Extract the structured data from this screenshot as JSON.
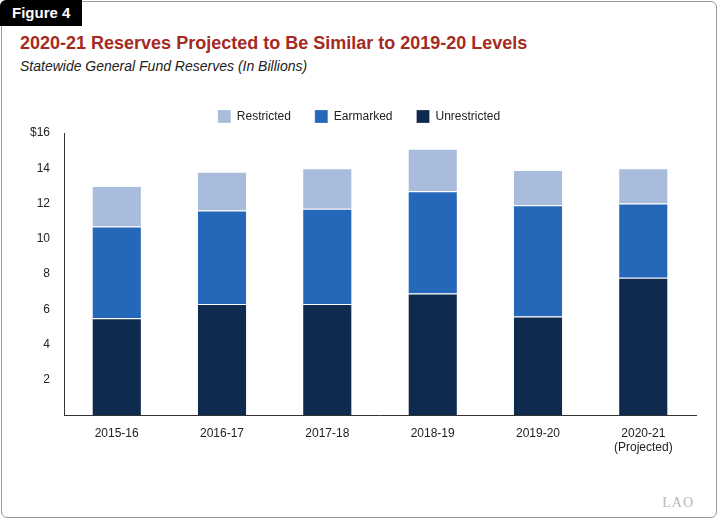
{
  "chart_data": {
    "type": "bar",
    "figure_label": "Figure 4",
    "title": "2020-21 Reserves Projected to Be Similar to 2019-20 Levels",
    "subtitle": "Statewide General Fund Reserves (In Billions)",
    "annotation": "LAO",
    "categories": [
      "2015-16",
      "2016-17",
      "2017-18",
      "2018-19",
      "2019-20",
      "2020-21 (Projected)"
    ],
    "series": [
      {
        "name": "Unrestricted",
        "color": "#0f2a4f",
        "values": [
          5.5,
          6.3,
          6.3,
          6.9,
          5.6,
          7.8
        ]
      },
      {
        "name": "Earmarked",
        "color": "#2567b8",
        "values": [
          5.2,
          5.3,
          5.4,
          5.8,
          6.3,
          4.2
        ]
      },
      {
        "name": "Restricted",
        "color": "#a9bcdc",
        "values": [
          2.3,
          2.2,
          2.3,
          2.4,
          2.0,
          2.0
        ]
      }
    ],
    "stacked": true,
    "legend": "top",
    "grid": false,
    "ylim": [
      0,
      16
    ],
    "yticks": [
      2,
      4,
      6,
      8,
      10,
      12,
      14,
      {
        "value": 16,
        "label": "$16"
      }
    ]
  }
}
